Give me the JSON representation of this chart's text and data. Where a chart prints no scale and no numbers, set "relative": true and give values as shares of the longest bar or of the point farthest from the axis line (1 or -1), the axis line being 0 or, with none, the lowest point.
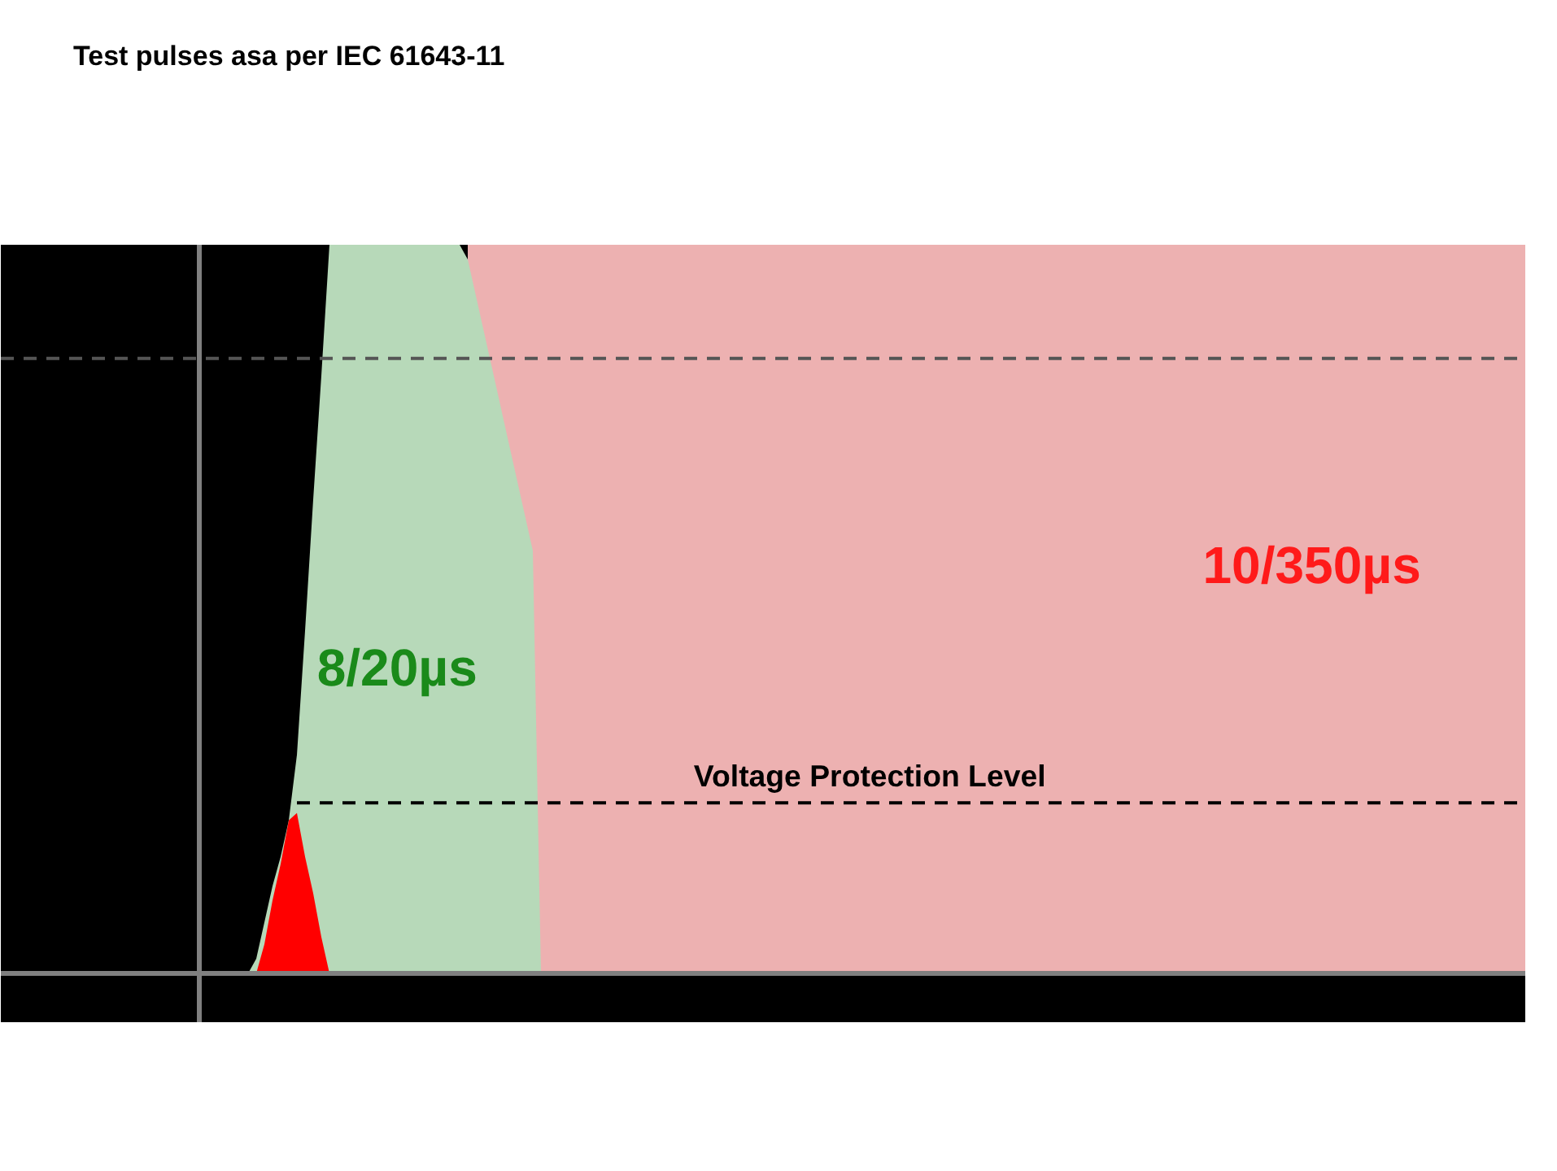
{
  "chart_data": {
    "type": "area",
    "title": "Test pulses asa per IEC 61643-11",
    "relative": true,
    "grid": false,
    "categories": [
      null,
      null,
      null,
      null,
      null,
      null,
      null,
      null,
      null,
      null,
      null,
      null,
      null,
      null,
      null,
      null,
      null,
      null,
      null,
      null,
      null,
      null,
      null,
      null,
      null,
      null,
      null,
      null,
      null,
      null,
      null,
      null,
      null,
      null,
      null,
      null,
      null,
      null,
      null,
      null,
      null,
      null,
      null,
      null,
      null,
      null,
      null,
      null,
      null,
      null,
      null,
      null,
      null,
      null,
      null,
      null,
      null,
      null,
      null,
      null,
      null,
      null,
      null,
      null,
      null,
      null,
      null,
      null,
      null,
      null,
      null,
      null,
      null,
      null,
      null,
      null,
      null,
      null,
      null,
      null,
      null,
      null,
      null,
      null,
      null,
      null,
      null,
      null,
      null,
      null,
      null,
      null,
      null,
      null,
      null,
      null,
      null,
      null,
      null,
      null,
      null,
      null,
      null,
      null,
      null,
      null,
      null,
      null,
      null,
      null,
      null,
      null,
      null,
      null,
      null,
      null,
      null,
      null,
      null,
      null,
      null,
      null,
      null,
      null,
      null,
      null,
      null,
      null,
      null,
      null,
      null,
      null,
      null,
      null,
      null,
      null,
      null,
      null,
      null,
      null,
      null,
      null,
      null,
      null,
      null,
      null,
      null,
      null,
      null,
      null,
      null,
      null,
      null,
      null,
      null,
      null,
      null,
      null,
      null,
      null,
      null,
      null,
      null,
      null
    ],
    "series": [
      {
        "name": "10/350µs",
        "color": "#edb1b1",
        "values": [
          null,
          null,
          null,
          null,
          null,
          null,
          null,
          null,
          null,
          null,
          null,
          null,
          null,
          null,
          null,
          null,
          null,
          null,
          null,
          null,
          null,
          null,
          null,
          null,
          null,
          null,
          null,
          null,
          null,
          null,
          null,
          null,
          null,
          1,
          1,
          1,
          1,
          1,
          1,
          1,
          1,
          1,
          1,
          1,
          1,
          1,
          1,
          1,
          1,
          1,
          1,
          1,
          1,
          1,
          1,
          1,
          1,
          1,
          1,
          1,
          1,
          1,
          1,
          1,
          1,
          1,
          1,
          1,
          1,
          1,
          1,
          1,
          1,
          1,
          1,
          1,
          1,
          1,
          1,
          1,
          1,
          1,
          1,
          1,
          1,
          1,
          1,
          1,
          1,
          1,
          1,
          1,
          1,
          1,
          1,
          1,
          1,
          1,
          1,
          1,
          1,
          1,
          1,
          1,
          1,
          1,
          1,
          1,
          1,
          1,
          1,
          1,
          1,
          1,
          1,
          1,
          1,
          1,
          1,
          1,
          1,
          1,
          1,
          1,
          1,
          1,
          1,
          1,
          1,
          1,
          1,
          1,
          1,
          1,
          1,
          1,
          1,
          1,
          1,
          1,
          1,
          1,
          1,
          1,
          1,
          1,
          1,
          1,
          1,
          1,
          1,
          1,
          1,
          1,
          1,
          1,
          1,
          1,
          1,
          1,
          1,
          1,
          1,
          1
        ]
      },
      {
        "name": "8/20µs",
        "color": "#b7d9b9",
        "values": [
          null,
          null,
          null,
          null,
          null,
          null,
          0,
          0.02,
          0.07,
          0.12,
          0.16,
          0.21,
          0.3,
          0.47,
          0.65,
          0.82,
          1,
          1,
          1,
          1,
          1,
          1,
          1,
          1,
          1,
          1,
          1,
          1,
          1,
          1,
          1,
          1,
          1,
          0.98,
          0.93,
          0.88,
          0.83,
          0.78,
          0.73,
          0.68,
          0.63,
          0.58,
          0,
          null,
          null,
          null,
          null,
          null,
          null,
          null,
          null,
          null,
          null,
          null,
          null,
          null,
          null,
          null,
          null,
          null,
          null,
          null,
          null,
          null,
          null,
          null,
          null,
          null,
          null,
          null,
          null,
          null,
          null,
          null,
          null,
          null,
          null,
          null,
          null,
          null,
          null,
          null,
          null,
          null,
          null,
          null,
          null,
          null,
          null,
          null,
          null,
          null,
          null,
          null,
          null,
          null,
          null,
          null,
          null,
          null,
          null,
          null,
          null,
          null,
          null,
          null,
          null,
          null,
          null,
          null,
          null,
          null,
          null,
          null,
          null,
          null,
          null,
          null,
          null,
          null,
          null,
          null,
          null,
          null,
          null,
          null,
          null,
          null,
          null,
          null,
          null,
          null,
          null,
          null,
          null,
          null,
          null,
          null,
          null,
          null,
          null,
          null,
          null,
          null,
          null,
          null,
          null,
          null,
          null,
          null,
          null,
          null,
          null,
          null,
          null,
          null,
          null,
          null,
          null,
          null,
          null,
          null,
          null,
          null
        ]
      },
      {
        "color": "#ff0000",
        "values": [
          null,
          null,
          null,
          null,
          null,
          null,
          null,
          0,
          0.04,
          0.1,
          0.15,
          0.21,
          0.22,
          0.16,
          0.11,
          0.05,
          0,
          null,
          null,
          null,
          null,
          null,
          null,
          null,
          null,
          null,
          null,
          null,
          null,
          null,
          null,
          null,
          null,
          null,
          null,
          null,
          null,
          null,
          null,
          null,
          null,
          null,
          null,
          null,
          null,
          null,
          null,
          null,
          null,
          null,
          null,
          null,
          null,
          null,
          null,
          null,
          null,
          null,
          null,
          null,
          null,
          null,
          null,
          null,
          null,
          null,
          null,
          null,
          null,
          null,
          null,
          null,
          null,
          null,
          null,
          null,
          null,
          null,
          null,
          null,
          null,
          null,
          null,
          null,
          null,
          null,
          null,
          null,
          null,
          null,
          null,
          null,
          null,
          null,
          null,
          null,
          null,
          null,
          null,
          null,
          null,
          null,
          null,
          null,
          null,
          null,
          null,
          null,
          null,
          null,
          null,
          null,
          null,
          null,
          null,
          null,
          null,
          null,
          null,
          null,
          null,
          null,
          null,
          null,
          null,
          null,
          null,
          null,
          null,
          null,
          null,
          null,
          null,
          null,
          null,
          null,
          null,
          null,
          null,
          null,
          null,
          null,
          null,
          null,
          null,
          null,
          null,
          null,
          null,
          null,
          null,
          null,
          null,
          null,
          null,
          null,
          null,
          null,
          null,
          null,
          null,
          null,
          null,
          null
        ]
      }
    ],
    "ref_lines": [
      {
        "axis": "y",
        "value": 0.234,
        "label": "Voltage Protection Level",
        "color": "#000000",
        "line_style": "dashed"
      },
      {
        "axis": "y",
        "value": 0.844,
        "color": "#555555",
        "line_style": "dashed"
      }
    ]
  }
}
